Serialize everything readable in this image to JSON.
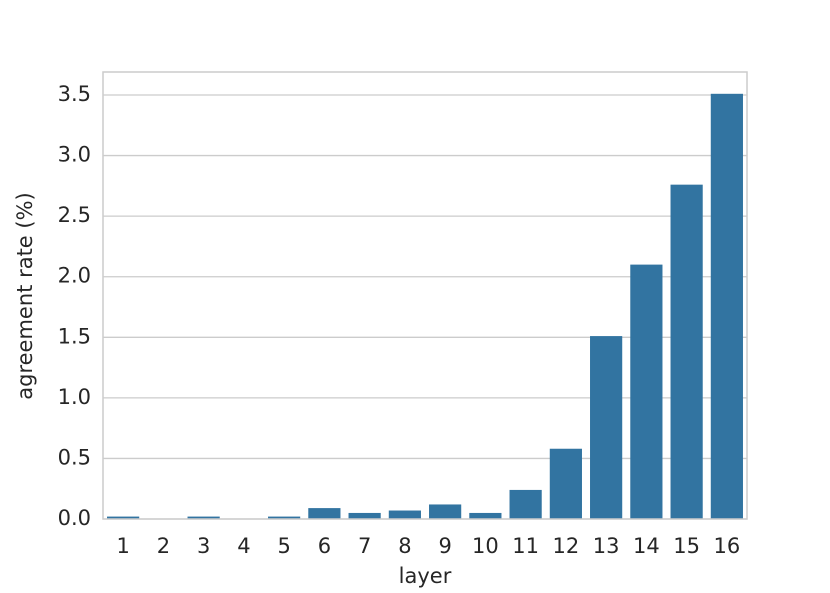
{
  "chart_data": {
    "type": "bar",
    "x_label": "layer",
    "y_label": "agreement rate (%)",
    "categories": [
      "1",
      "2",
      "3",
      "4",
      "5",
      "6",
      "7",
      "8",
      "9",
      "10",
      "11",
      "12",
      "13",
      "14",
      "15",
      "16"
    ],
    "values": [
      0.02,
      0,
      0.02,
      0,
      0.02,
      0.09,
      0.05,
      0.07,
      0.12,
      0.05,
      0.24,
      0.58,
      1.51,
      2.1,
      2.76,
      3.51
    ],
    "color": "#3274a1",
    "ylim": [
      0,
      3.69
    ],
    "yticks": [
      {
        "value": 0,
        "label": "0.0"
      },
      {
        "value": 0.5,
        "label": "0.5"
      },
      {
        "value": 1,
        "label": "1.0"
      },
      {
        "value": 1.5,
        "label": "1.5"
      },
      {
        "value": 2,
        "label": "2.0"
      },
      {
        "value": 2.5,
        "label": "2.5"
      },
      {
        "value": 3,
        "label": "3.0"
      },
      {
        "value": 3.5,
        "label": "3.5"
      }
    ],
    "grid": true
  }
}
